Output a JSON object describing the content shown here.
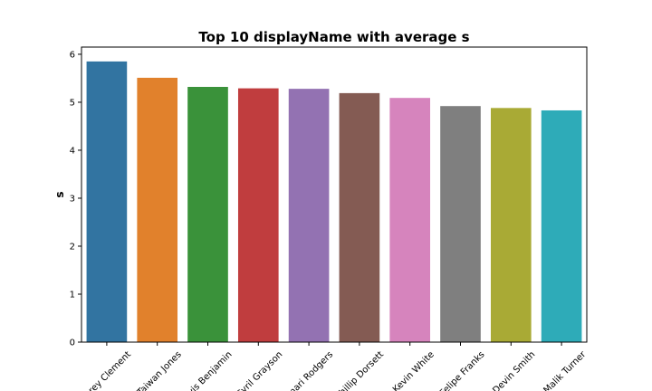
{
  "chart_data": {
    "type": "bar",
    "title": "Top 10 displayName with average s",
    "xlabel": "",
    "ylabel": "s",
    "ylim": [
      0,
      6.15
    ],
    "yticks": [
      0,
      1,
      2,
      3,
      4,
      5,
      6
    ],
    "grid": false,
    "legend": "none",
    "categories": [
      "Corey Clement",
      "Taiwan Jones",
      "Travis Benjamin",
      "Cyril Grayson",
      "Jamari Rodgers",
      "Phillip Dorsett",
      "Kevin White",
      "Felipe Franks",
      "Devin Smith",
      "Malik Turner"
    ],
    "values": [
      5.85,
      5.51,
      5.32,
      5.29,
      5.28,
      5.19,
      5.09,
      4.92,
      4.88,
      4.83
    ],
    "colors": [
      "#3274a1",
      "#e1812c",
      "#3a923a",
      "#c03d3e",
      "#9372b2",
      "#845b53",
      "#d684bd",
      "#7f7f7f",
      "#a9aa35",
      "#2eabb8"
    ]
  }
}
